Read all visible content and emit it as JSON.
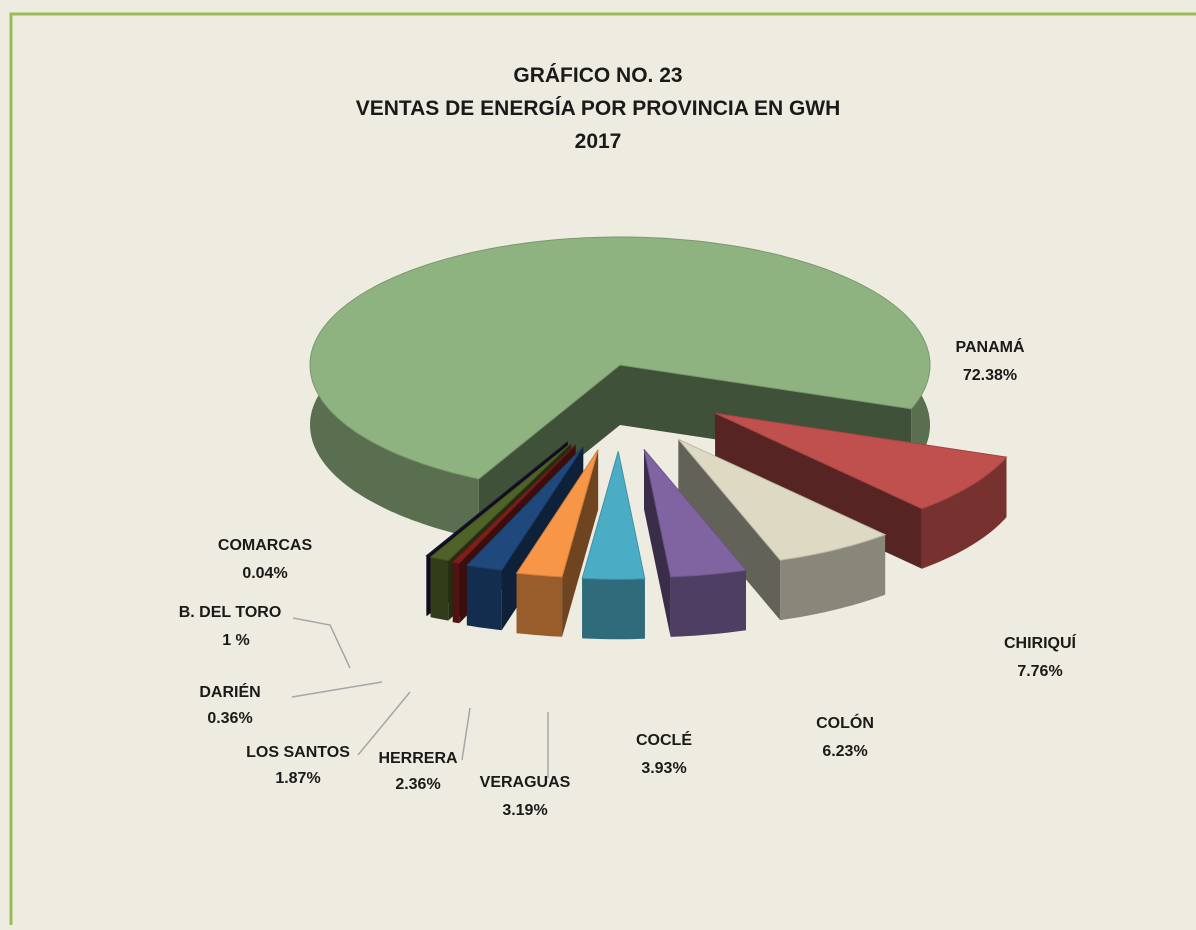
{
  "chart_data": {
    "type": "pie3d",
    "title": [
      "GRÁFICO NO.  23",
      "VENTAS DE ENERGÍA POR PROVINCIA EN GWH",
      "2017"
    ],
    "categories": [
      "PANAMÁ",
      "CHIRIQUÍ",
      "COLÓN",
      "COCLÉ",
      "VERAGUAS",
      "HERRERA",
      "LOS SANTOS",
      "DARIÉN",
      "B. DEL TORO",
      "COMARCAS"
    ],
    "values": [
      72.38,
      7.76,
      6.23,
      3.93,
      3.19,
      2.36,
      1.87,
      0.36,
      1,
      0.04
    ],
    "value_labels": [
      "72.38%",
      "7.76%",
      "6.23%",
      "3.93%",
      "3.19%",
      "2.36%",
      "1.87%",
      "0.36%",
      "1 %",
      "0.04%"
    ],
    "colors": [
      "#8fb380",
      "#c0504d",
      "#ddd9c3",
      "#8064a2",
      "#4bacc6",
      "#f79646",
      "#1f497d",
      "#7f1f1c",
      "#4f6228",
      "#1f1a3d"
    ]
  }
}
